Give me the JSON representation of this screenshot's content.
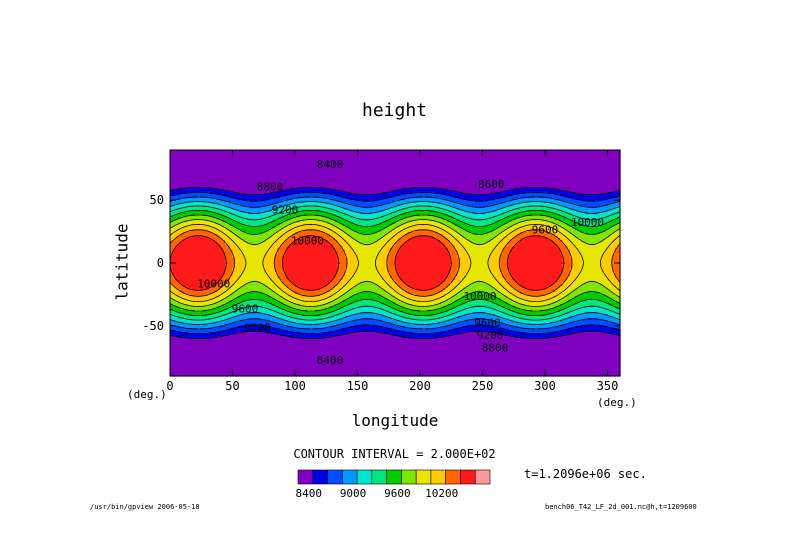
{
  "chart_data": {
    "type": "contour",
    "title": "height",
    "xlabel": "longitude",
    "ylabel": "latitude",
    "x_unit": "(deg.)",
    "y_unit": "(deg.)",
    "xlim": [
      0,
      360
    ],
    "ylim": [
      -90,
      90
    ],
    "x_ticks": [
      0,
      50,
      100,
      150,
      200,
      250,
      300,
      350
    ],
    "y_ticks": [
      -50,
      0,
      50
    ],
    "field": {
      "mean": 9000,
      "zonal_amplitude": 1400,
      "wave_amplitude": 450,
      "wavenumber": 4,
      "phase_deg": -22.5
    },
    "levels": [
      8400,
      8600,
      8800,
      9000,
      9200,
      9400,
      9600,
      9800,
      10000,
      10200,
      10400
    ],
    "level_colors": [
      "#7f00bf",
      "#0000e6",
      "#004cff",
      "#0099ff",
      "#00e6cc",
      "#00e680",
      "#00cc00",
      "#80e600",
      "#e6e600",
      "#ffcc00",
      "#ff6600",
      "#ff1a1a",
      "#ff9999"
    ],
    "contour_labels": [
      {
        "text": "8400",
        "lon": 128,
        "lat": 78
      },
      {
        "text": "8400",
        "lon": 128,
        "lat": -78
      },
      {
        "text": "8600",
        "lon": 257,
        "lat": 62
      },
      {
        "text": "8800",
        "lon": 80,
        "lat": 60
      },
      {
        "text": "9200",
        "lon": 92,
        "lat": 42
      },
      {
        "text": "9600",
        "lon": 300,
        "lat": 26
      },
      {
        "text": "10000",
        "lon": 110,
        "lat": 17
      },
      {
        "text": "10000",
        "lon": 334,
        "lat": 32
      },
      {
        "text": "10000",
        "lon": 35,
        "lat": -17
      },
      {
        "text": "10000",
        "lon": 248,
        "lat": -27
      },
      {
        "text": "9600",
        "lon": 60,
        "lat": -37
      },
      {
        "text": "9200",
        "lon": 70,
        "lat": -52
      },
      {
        "text": "9600",
        "lon": 254,
        "lat": -48
      },
      {
        "text": "9200",
        "lon": 256,
        "lat": -58
      },
      {
        "text": "8800",
        "lon": 260,
        "lat": -68
      }
    ]
  },
  "colorbar": {
    "labels": [
      "8400",
      "9000",
      "9600",
      "10200"
    ],
    "colors": [
      "#7f00bf",
      "#0000e6",
      "#004cff",
      "#0099ff",
      "#00e6cc",
      "#00e680",
      "#00cc00",
      "#80e600",
      "#e6e600",
      "#ffcc00",
      "#ff6600",
      "#ff1a1a",
      "#ff9999"
    ]
  },
  "texts": {
    "contour_interval": "CONTOUR INTERVAL = 2.000E+02",
    "time": "t=1.2096e+06 sec.",
    "footer_left": "/usr/bin/gpview  2006-05-18",
    "footer_right": "bench06_T42_LF_2d_001.nc@h,t=1209600",
    "x_unit_left": "(deg.)"
  }
}
